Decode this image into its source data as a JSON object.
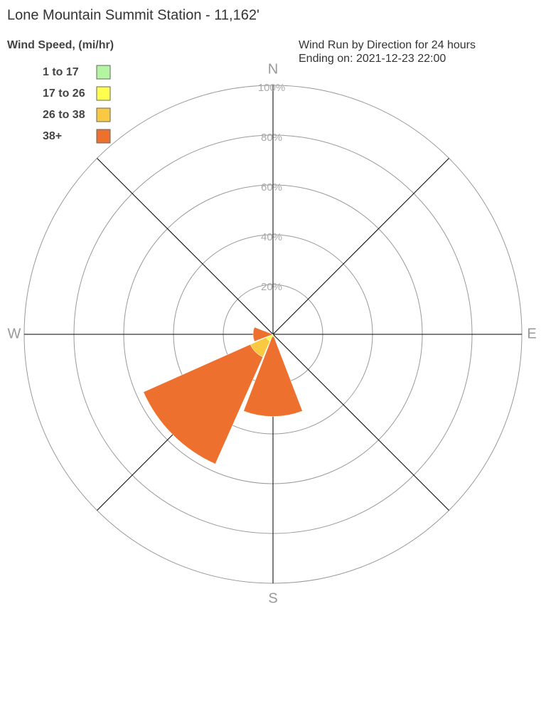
{
  "chart_data": {
    "type": "windrose",
    "title": "Lone Mountain Summit Station - 11,162'",
    "legend_title": "Wind Speed, (mi/hr)",
    "subtitle": [
      "Wind Run by Direction for 24 hours",
      "Ending on: 2021-12-23 22:00"
    ],
    "categories": [
      "N",
      null,
      "E",
      null,
      "S",
      null,
      "W",
      null
    ],
    "series": [
      {
        "name": "1 to 17",
        "color": "#b3f5a0",
        "values": [
          0,
          0,
          0,
          0,
          0,
          0,
          0,
          0
        ]
      },
      {
        "name": "17 to 26",
        "color": "#ffff4d",
        "values": [
          0,
          0,
          0,
          0,
          0,
          3,
          0,
          0
        ]
      },
      {
        "name": "26 to 38",
        "color": "#f9c941",
        "values": [
          0,
          0,
          0,
          0,
          1,
          7,
          0,
          0
        ]
      },
      {
        "name": "38+",
        "color": "#ee702e",
        "values": [
          0,
          0,
          0,
          0,
          32,
          47,
          8,
          0
        ]
      }
    ],
    "rlim": [
      0,
      100
    ],
    "rticks": [
      {
        "value": 20,
        "label": "20%"
      },
      {
        "value": 40,
        "label": "40%"
      },
      {
        "value": 60,
        "label": "60%"
      },
      {
        "value": 80,
        "label": "80%"
      },
      {
        "value": 100,
        "label": "100%"
      }
    ]
  }
}
